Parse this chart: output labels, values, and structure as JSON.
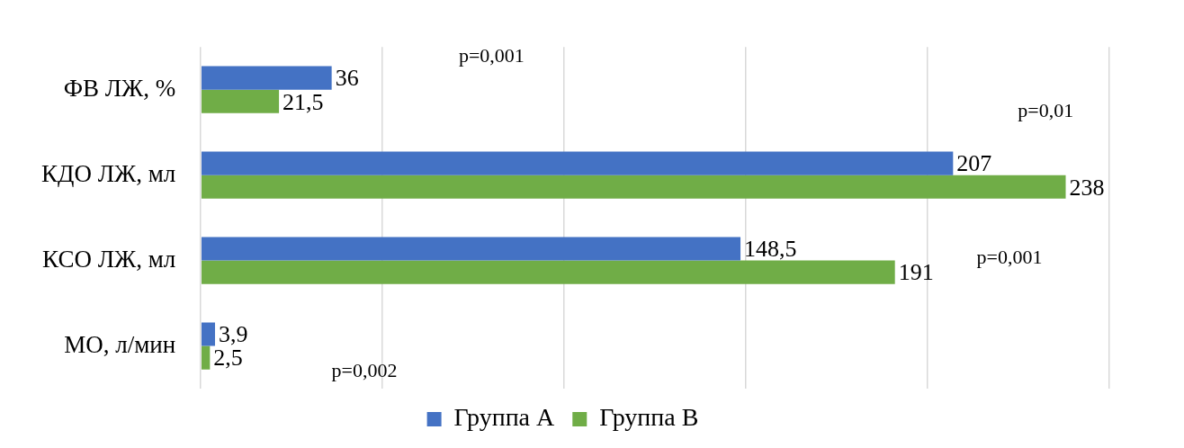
{
  "chart_data": {
    "type": "bar",
    "orientation": "horizontal",
    "categories": [
      "ФВ ЛЖ, %",
      "КДО ЛЖ, мл",
      "КСО ЛЖ, мл",
      "МО, л/мин"
    ],
    "series": [
      {
        "name": "Группа А",
        "color": "#4472c4",
        "values": [
          36,
          207,
          148.5,
          3.9
        ],
        "value_labels": [
          "36",
          "207",
          "148,5",
          "3,9"
        ]
      },
      {
        "name": "Группа В",
        "color": "#70ad47",
        "values": [
          21.5,
          238,
          191,
          2.5
        ],
        "value_labels": [
          "21,5",
          "238",
          "191",
          "2,5"
        ]
      }
    ],
    "xlim": [
      0,
      250
    ],
    "xticks": [
      {
        "value": 0,
        "label": null
      },
      {
        "value": 50,
        "label": null
      },
      {
        "value": 100,
        "label": null
      },
      {
        "value": 150,
        "label": null
      },
      {
        "value": 200,
        "label": null
      },
      {
        "value": 250,
        "label": null
      }
    ],
    "tick_labels": "y",
    "grid": "x",
    "legend": "bottom",
    "annotations": [
      "p=0,001",
      "p=0,01",
      "p=0,001",
      "p=0,002"
    ]
  }
}
